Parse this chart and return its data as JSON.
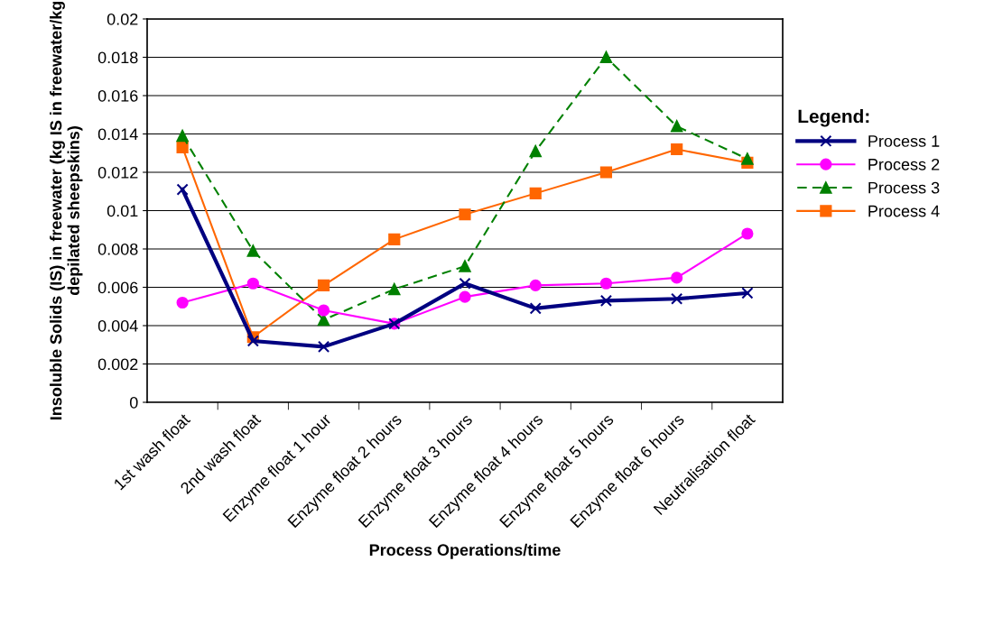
{
  "chart_data": {
    "type": "line",
    "xlabel": "Process Operations/time",
    "ylabel": "Insoluble Solids (IS) in freewater (kg IS in freewater/kg depilated sheepskins)",
    "legend_title": "Legend:",
    "categories": [
      "1st wash float",
      "2nd wash float",
      "Enzyme float 1 hour",
      "Enzyme float 2 hours",
      "Enzyme float 3 hours",
      "Enzyme float 4 hours",
      "Enzyme float 5 hours",
      "Enzyme float 6 hours",
      "Neutralisation float"
    ],
    "series": [
      {
        "name": "Process 1",
        "color": "#000080",
        "marker": "cross",
        "line_style": "solid",
        "values": [
          0.0111,
          0.0032,
          0.0029,
          0.0041,
          0.0062,
          0.0049,
          0.0053,
          0.0054,
          0.0057
        ]
      },
      {
        "name": "Process 2",
        "color": "#ff00ff",
        "marker": "circle",
        "line_style": "solid",
        "values": [
          0.0052,
          0.0062,
          0.0048,
          0.0041,
          0.0055,
          0.0061,
          0.0062,
          0.0065,
          0.0088
        ]
      },
      {
        "name": "Process 3",
        "color": "#008000",
        "marker": "triangle",
        "line_style": "dashed",
        "values": [
          0.0139,
          0.0079,
          0.0043,
          0.0059,
          0.0071,
          0.0131,
          0.018,
          0.0144,
          0.0127
        ]
      },
      {
        "name": "Process 4",
        "color": "#ff6600",
        "marker": "square",
        "line_style": "solid",
        "values": [
          0.0133,
          0.0034,
          0.0061,
          0.0085,
          0.0098,
          0.0109,
          0.012,
          0.0132,
          0.0125
        ]
      }
    ],
    "ylim": [
      0,
      0.02
    ],
    "yticks": [
      0,
      0.002,
      0.004,
      0.006,
      0.008,
      0.01,
      0.012,
      0.014,
      0.016,
      0.018,
      0.02
    ],
    "grid": "y",
    "legend": "right"
  }
}
